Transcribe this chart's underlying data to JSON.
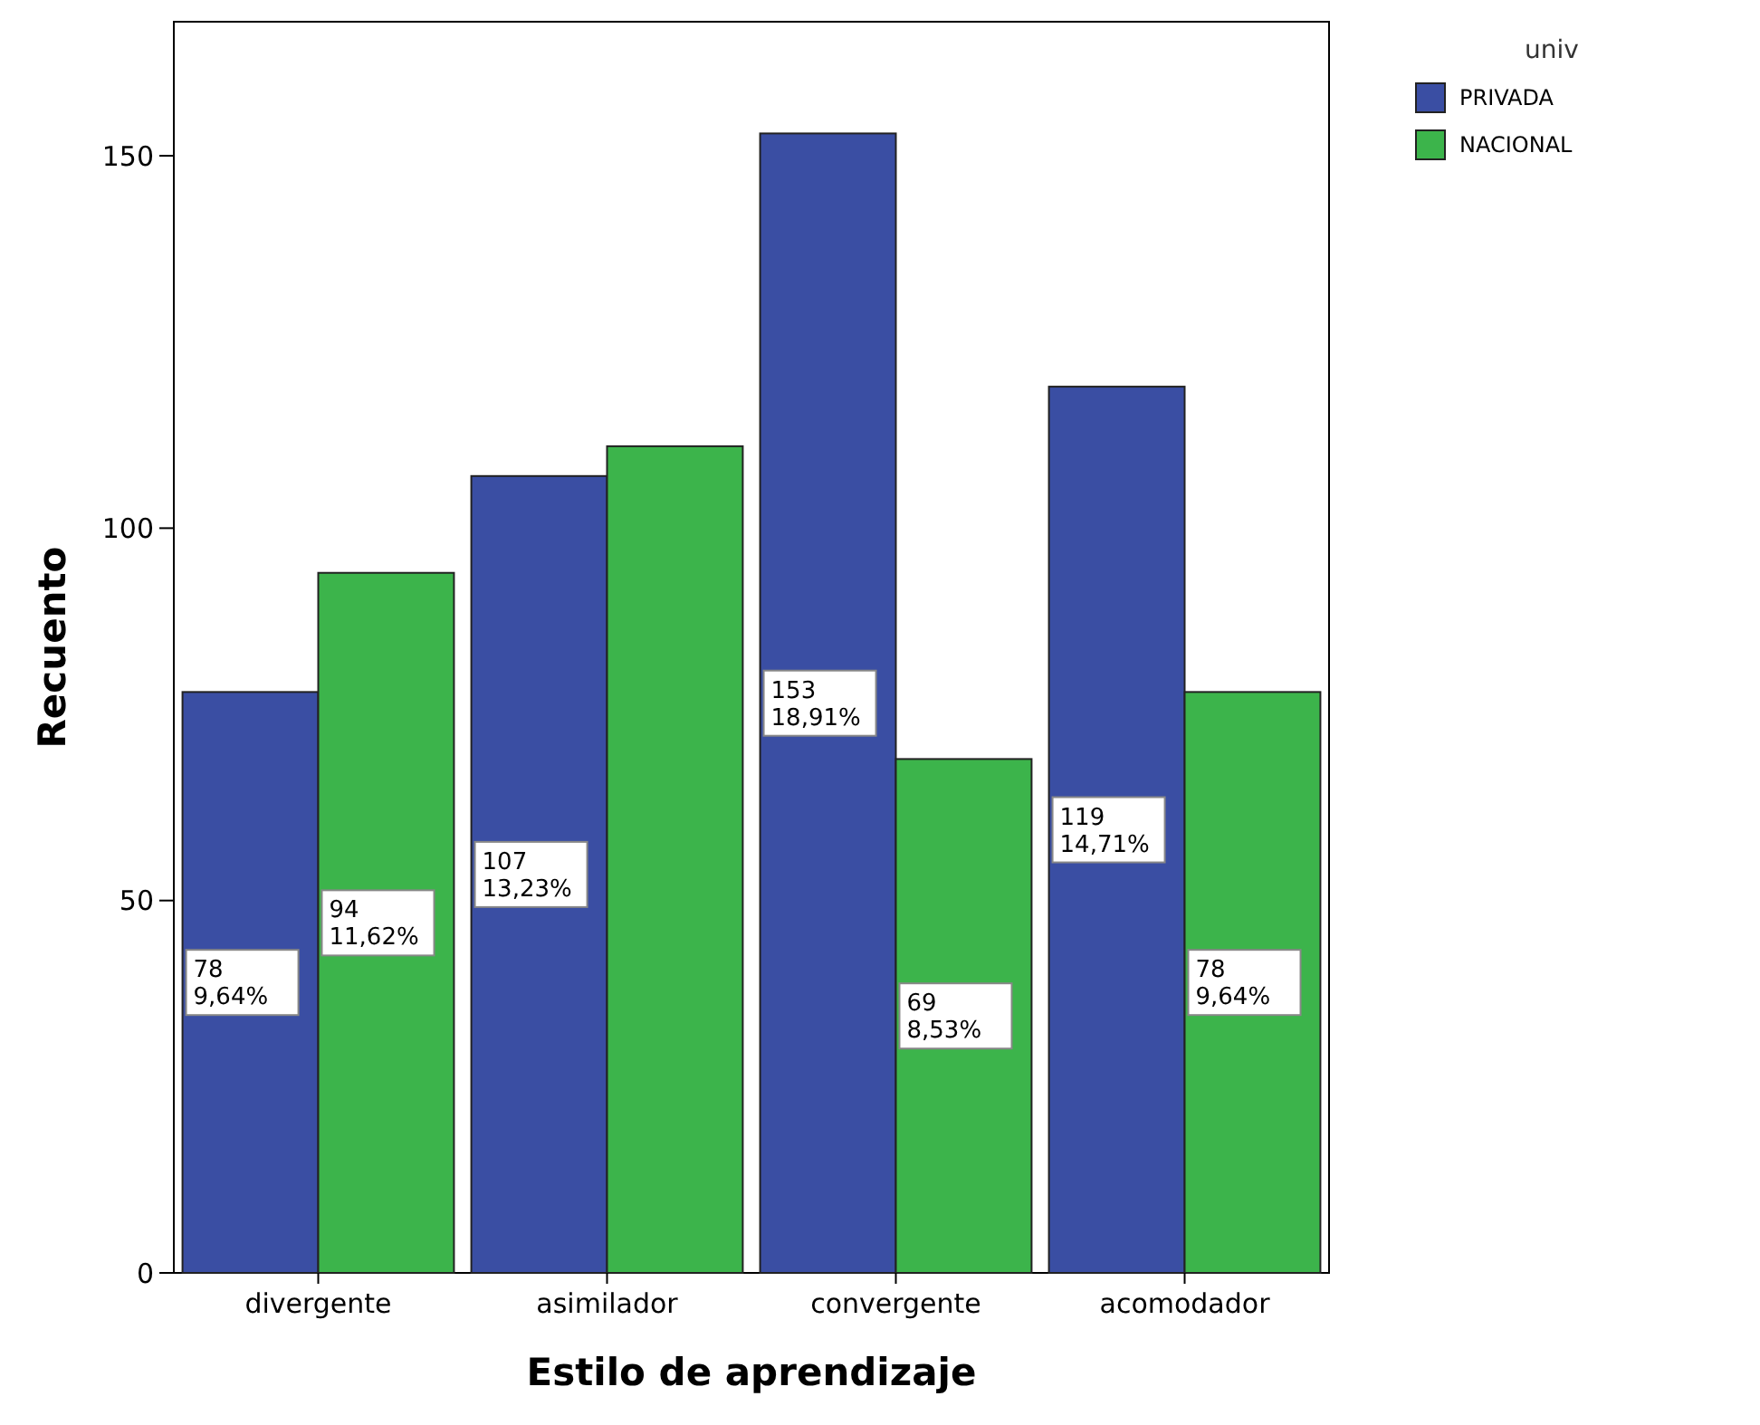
{
  "chart_data": {
    "type": "bar",
    "xlabel": "Estilo de aprendizaje",
    "ylabel": "Recuento",
    "legend_title": "univ",
    "legend": "top right",
    "categories": [
      "divergente",
      "asimilador",
      "convergente",
      "acomodador"
    ],
    "ylim": [
      0,
      168
    ],
    "yticks": [
      0,
      50,
      100,
      150
    ],
    "grid": false,
    "series": [
      {
        "name": "PRIVADA",
        "color": "#3a4ea3",
        "values": [
          78,
          107,
          153,
          119
        ],
        "value_labels": [
          "78\n9,64%",
          "107\n13,23%",
          "153\n18,91%",
          "119\n14,71%"
        ]
      },
      {
        "name": "NACIONAL",
        "color": "#3cb44b",
        "values": [
          94,
          111,
          69,
          78
        ],
        "value_labels": [
          "94\n11,62%",
          null,
          "69\n8,53%",
          "78\n9,64%"
        ]
      }
    ]
  }
}
